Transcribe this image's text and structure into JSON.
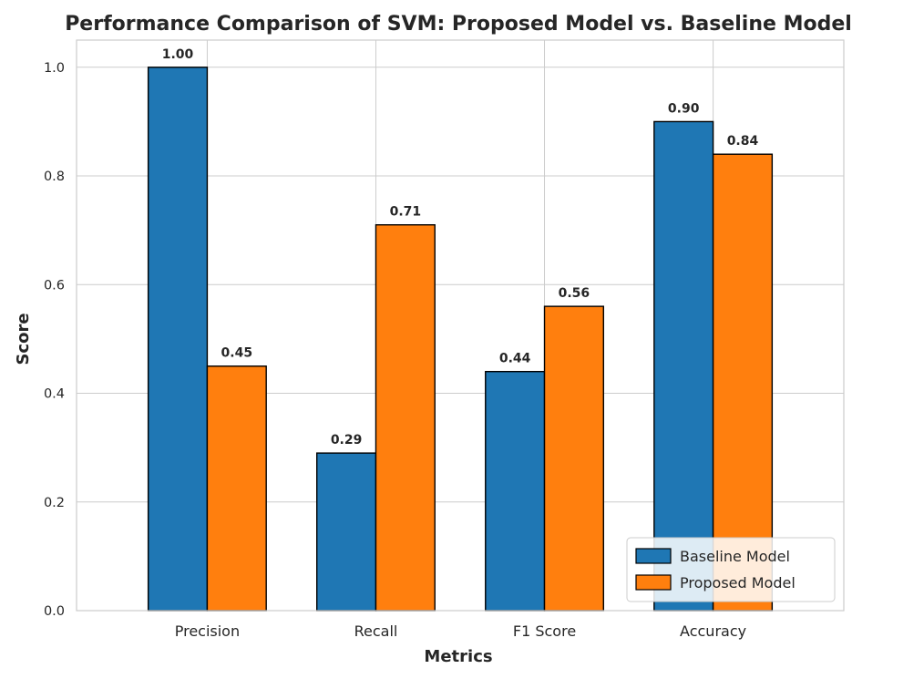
{
  "chart_data": {
    "type": "bar",
    "title": "Performance Comparison of SVM: Proposed Model vs. Baseline Model",
    "xlabel": "Metrics",
    "ylabel": "Score",
    "categories": [
      "Precision",
      "Recall",
      "F1 Score",
      "Accuracy"
    ],
    "series": [
      {
        "name": "Baseline Model",
        "color": "#1f77b4",
        "values": [
          1.0,
          0.29,
          0.44,
          0.9
        ],
        "labels": [
          "1.00",
          "0.29",
          "0.44",
          "0.90"
        ]
      },
      {
        "name": "Proposed Model",
        "color": "#ff7f0e",
        "values": [
          0.45,
          0.71,
          0.56,
          0.84
        ],
        "labels": [
          "0.45",
          "0.71",
          "0.56",
          "0.84"
        ]
      }
    ],
    "ylim": [
      0,
      1.05
    ],
    "yticks": [
      0.0,
      0.2,
      0.4,
      0.6,
      0.8,
      1.0
    ],
    "ytick_labels": [
      "0.0",
      "0.2",
      "0.4",
      "0.6",
      "0.8",
      "1.0"
    ],
    "grid": true,
    "legend_position": "bottom-right"
  }
}
